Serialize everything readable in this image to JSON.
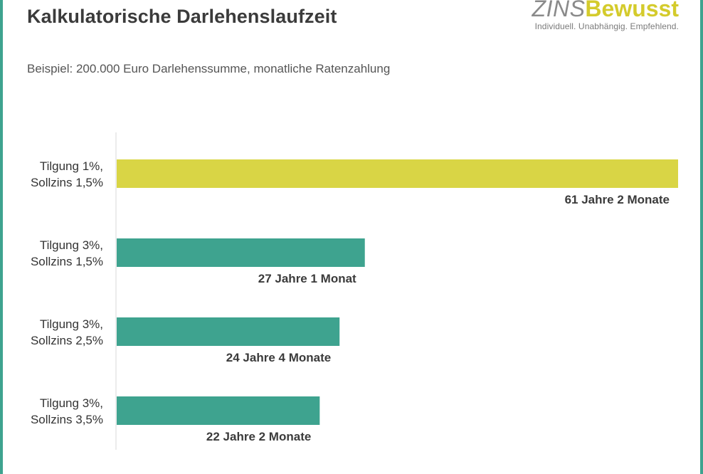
{
  "header": {
    "title": "Kalkulatorische Darlehenslaufzeit",
    "subtitle": "Beispiel: 200.000 Euro Darlehenssumme, monatliche Ratenzahlung"
  },
  "logo": {
    "part1": "ZINS",
    "part2": "Bewusst",
    "tagline": "Individuell. Unabhängig. Empfehlend."
  },
  "colors": {
    "border": "#3ea38f",
    "highlight_bar": "#d9d545",
    "bar": "#3ea38f",
    "axis": "#d9d9d9"
  },
  "chart_data": {
    "type": "bar",
    "orientation": "horizontal",
    "unit": "Jahre",
    "categories": [
      [
        "Tilgung 1%,",
        "Sollzins 1,5%"
      ],
      [
        "Tilgung 3%,",
        "Sollzins 1,5%"
      ],
      [
        "Tilgung 3%,",
        "Sollzins 2,5%"
      ],
      [
        "Tilgung 3%,",
        "Sollzins 3,5%"
      ]
    ],
    "values": [
      61.17,
      27.08,
      24.33,
      22.17
    ],
    "value_labels": [
      "61 Jahre 2 Monate",
      "27 Jahre 1 Monat",
      "24 Jahre 4 Monate",
      "22 Jahre 2 Monate"
    ],
    "highlight_index": 0,
    "xlim": [
      0,
      61.17
    ],
    "grid": false,
    "legend": "none"
  }
}
